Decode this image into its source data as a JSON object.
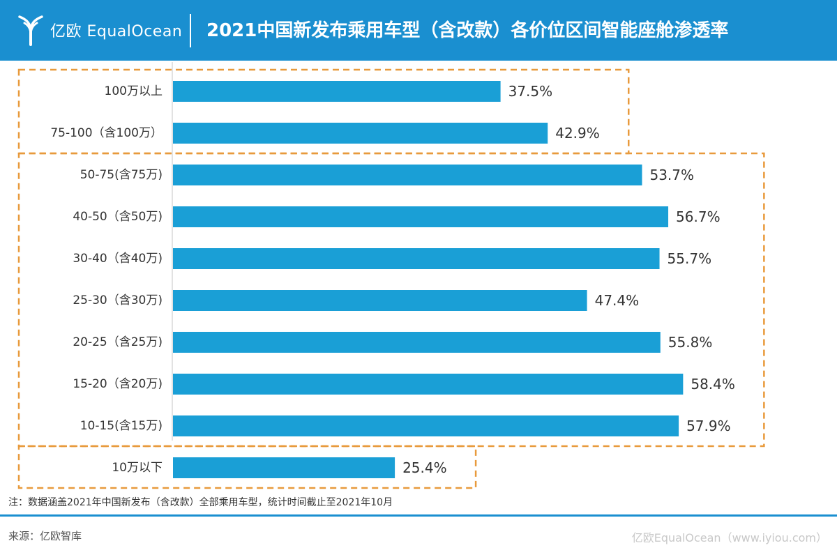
{
  "header": {
    "logo_text": "亿欧 EqualOcean",
    "title": "2021中国新发布乘用车型（含改款）各价位区间智能座舱渗透率"
  },
  "colors": {
    "header_bg": "#1a8fd0",
    "bar": "#1a9fd6",
    "group_box": "#e89a3c",
    "axis": "#d8d8d8"
  },
  "chart_data": {
    "type": "bar",
    "orientation": "horizontal",
    "categories": [
      "100万以上",
      "75-100（含100万）",
      "50-75(含75万)",
      "40-50（含50万)",
      "30-40（含40万)",
      "25-30（含30万)",
      "20-25（含25万)",
      "15-20（含20万)",
      "10-15(含15万)",
      "10万以下"
    ],
    "values": [
      37.5,
      42.9,
      53.7,
      56.7,
      55.7,
      47.4,
      55.8,
      58.4,
      57.9,
      25.4
    ],
    "value_labels": [
      "37.5%",
      "42.9%",
      "53.7%",
      "56.7%",
      "55.7%",
      "47.4%",
      "55.8%",
      "58.4%",
      "57.9%",
      "25.4%"
    ],
    "unit": "%",
    "xlim": [
      0,
      65
    ],
    "groups": [
      {
        "start": 0,
        "end": 1
      },
      {
        "start": 2,
        "end": 8
      },
      {
        "start": 9,
        "end": 9
      }
    ]
  },
  "footer": {
    "note": "注：数据涵盖2021年中国新发布（含改款）全部乘用车型，统计时间截止至2021年10月",
    "source": "来源：亿欧智库",
    "watermark": "亿欧EqualOcean（www.iyiou.com）"
  }
}
